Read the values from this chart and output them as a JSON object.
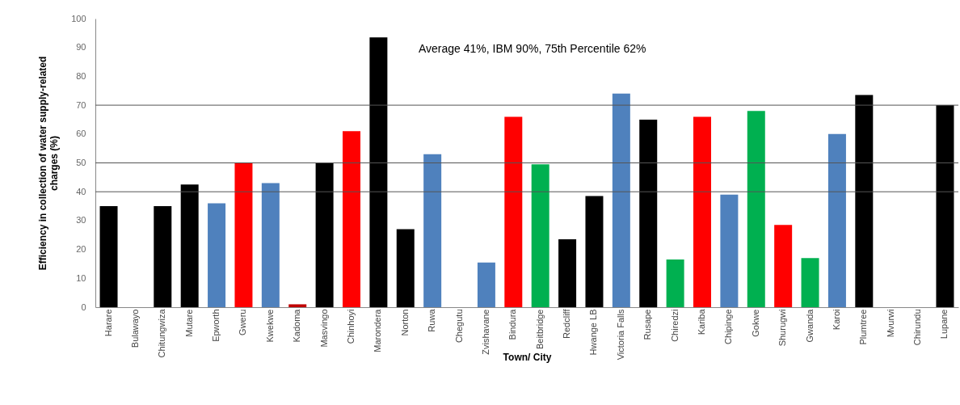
{
  "chart_data": {
    "type": "bar",
    "xlabel": "Town/ City",
    "ylabel": "Efficiency in collection of water supply-related charges  (%)",
    "categories": [
      "Harare",
      "Bulawayo",
      "Chitungwiza",
      "Mutare",
      "Epworth",
      "Gweru",
      "Kwekwe",
      "Kadoma",
      "Masvingo",
      "Chinhoyi",
      "Marondera",
      "Norton",
      "Ruwa",
      "Chegutu",
      "Zvishavane",
      "Bindura",
      "Beitbridge",
      "Redcliff",
      "Hwange LB",
      "Victoria Falls",
      "Rusape",
      "Chiredzi",
      "Kariba",
      "Chipinge",
      "Gokwe",
      "Shurugwi",
      "Gwanda",
      "Karoi",
      "Plumtree",
      "Mvurwi",
      "Chirundu",
      "Lupane"
    ],
    "values": [
      35,
      null,
      35,
      42.5,
      36,
      50,
      43,
      1,
      50,
      61,
      93.5,
      27,
      53,
      null,
      15.5,
      66,
      49.5,
      23.5,
      38.5,
      74,
      65,
      16.5,
      66,
      39,
      68,
      28.5,
      17,
      60,
      73.5,
      null,
      null,
      70
    ],
    "colors": [
      "#000000",
      "#000000",
      "#000000",
      "#000000",
      "#4f81bd",
      "#ff0000",
      "#4f81bd",
      "#c00000",
      "#000000",
      "#ff0000",
      "#000000",
      "#000000",
      "#4f81bd",
      "#000000",
      "#4f81bd",
      "#ff0000",
      "#00b050",
      "#000000",
      "#000000",
      "#4f81bd",
      "#000000",
      "#00b050",
      "#ff0000",
      "#4f81bd",
      "#00b050",
      "#ff0000",
      "#00b050",
      "#4f81bd",
      "#000000",
      "#000000",
      "#000000",
      "#000000"
    ],
    "ylim": [
      0,
      100
    ],
    "yticks": [
      0,
      10,
      20,
      30,
      40,
      50,
      60,
      70,
      80,
      90,
      100
    ],
    "ref_lines": [
      {
        "axis": "y",
        "value": 40
      },
      {
        "axis": "y",
        "value": 50
      },
      {
        "axis": "y",
        "value": 70
      }
    ],
    "annotations": [
      "Average  41%, IBM 90%, 75th Percentile 62%"
    ]
  }
}
